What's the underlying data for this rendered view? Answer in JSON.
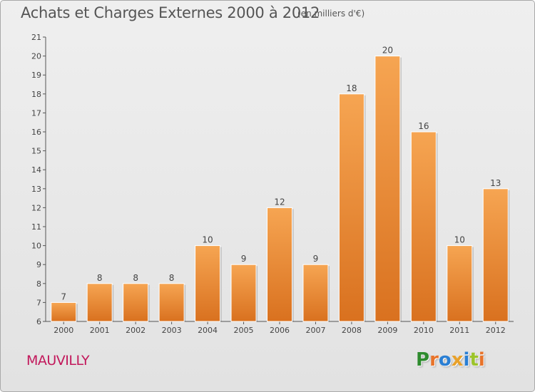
{
  "header": {
    "title": "Achats et Charges Externes 2000 à 2012",
    "subtitle": "(en milliers d'€)"
  },
  "footer": {
    "commune": "MAUVILLY",
    "logo": "Proxiti"
  },
  "colors": {
    "bar_light": "#f6a552",
    "bar_dark": "#d9711f",
    "commune": "#c2185b",
    "axis": "#555555",
    "logo_letters": [
      "#2e8b2e",
      "#e8732a",
      "#2a7fd4",
      "#e8a12a",
      "#2a7fd4",
      "#9cc42a",
      "#e8732a"
    ]
  },
  "chart_data": {
    "type": "bar",
    "categories": [
      "2000",
      "2001",
      "2002",
      "2003",
      "2004",
      "2005",
      "2006",
      "2007",
      "2008",
      "2009",
      "2010",
      "2011",
      "2012"
    ],
    "values": [
      7,
      8,
      8,
      8,
      10,
      9,
      12,
      9,
      18,
      20,
      16,
      10,
      13
    ],
    "title": "Achats et Charges Externes 2000 à 2012",
    "subtitle": "(en milliers d'€)",
    "ylim": [
      6,
      21
    ],
    "yticks": [
      6,
      7,
      8,
      9,
      10,
      11,
      12,
      13,
      14,
      15,
      16,
      17,
      18,
      19,
      20,
      21
    ],
    "grid": false,
    "data_labels": true
  }
}
